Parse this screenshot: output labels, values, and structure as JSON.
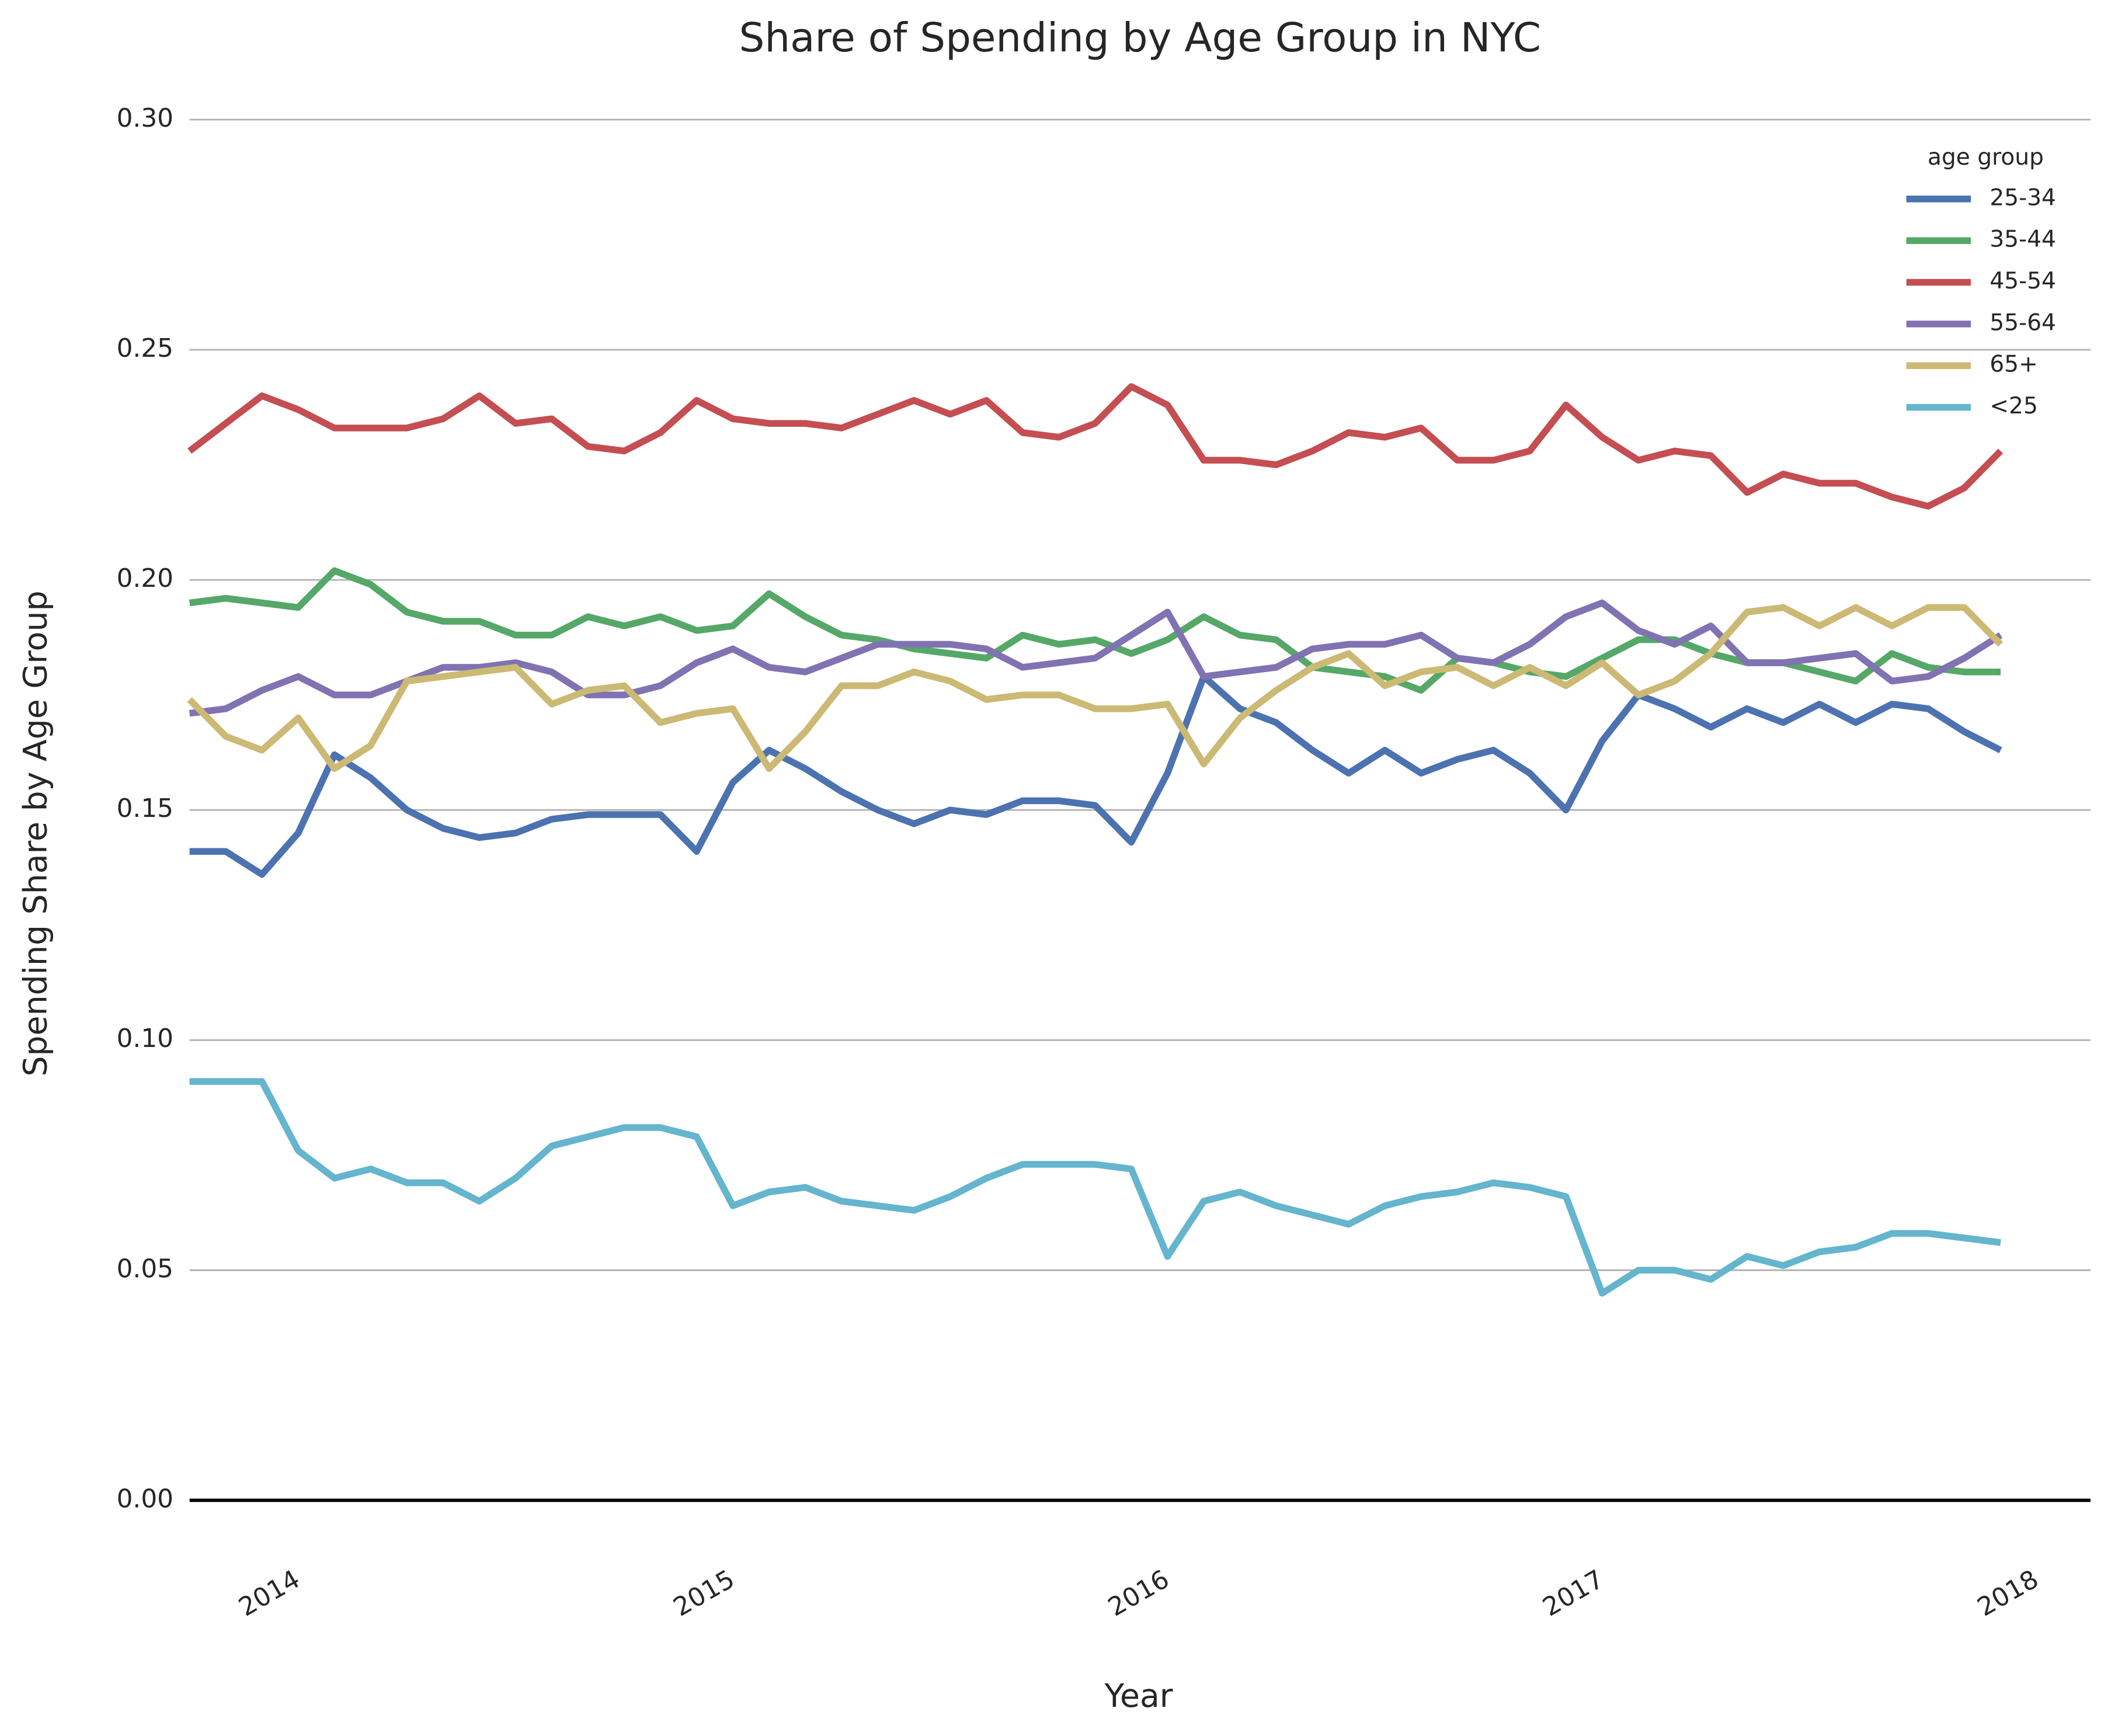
{
  "chart_data": {
    "type": "line",
    "title": "Share of Spending by Age Group in NYC",
    "x_label": "Year",
    "y_label": "Spending Share by Age Group",
    "legend_title": "age group",
    "legend": "upper right",
    "grid": true,
    "x": [
      "2013-10",
      "2013-11",
      "2013-12",
      "2014-01",
      "2014-02",
      "2014-03",
      "2014-04",
      "2014-05",
      "2014-06",
      "2014-07",
      "2014-08",
      "2014-09",
      "2014-10",
      "2014-11",
      "2014-12",
      "2015-01",
      "2015-02",
      "2015-03",
      "2015-04",
      "2015-05",
      "2015-06",
      "2015-07",
      "2015-08",
      "2015-09",
      "2015-10",
      "2015-11",
      "2015-12",
      "2016-01",
      "2016-02",
      "2016-03",
      "2016-04",
      "2016-05",
      "2016-06",
      "2016-07",
      "2016-08",
      "2016-09",
      "2016-10",
      "2016-11",
      "2016-12",
      "2017-01",
      "2017-02",
      "2017-03",
      "2017-04",
      "2017-05",
      "2017-06",
      "2017-07",
      "2017-08",
      "2017-09",
      "2017-10",
      "2017-11",
      "2017-12"
    ],
    "xlim": [
      "2013-10",
      "2018-02"
    ],
    "xticks": [
      {
        "value": "2014-01",
        "label": "2014"
      },
      {
        "value": "2015-01",
        "label": "2015"
      },
      {
        "value": "2016-01",
        "label": "2016"
      },
      {
        "value": "2017-01",
        "label": "2017"
      },
      {
        "value": "2018-01",
        "label": "2018"
      }
    ],
    "ylim": [
      0,
      0.3
    ],
    "yticks": [
      {
        "value": 0,
        "label": "0.00"
      },
      0.05,
      {
        "value": 0.1,
        "label": "0.10"
      },
      0.15,
      {
        "value": 0.2,
        "label": "0.20"
      },
      0.25,
      {
        "value": 0.3,
        "label": "0.30"
      }
    ],
    "series": [
      {
        "name": "25-34",
        "color": "#4c72b0",
        "values": [
          0.141,
          0.141,
          0.136,
          0.145,
          0.162,
          0.157,
          0.15,
          0.146,
          0.144,
          0.145,
          0.148,
          0.149,
          0.149,
          0.149,
          0.141,
          0.156,
          0.163,
          0.159,
          0.154,
          0.15,
          0.147,
          0.15,
          0.149,
          0.152,
          0.152,
          0.151,
          0.143,
          0.158,
          0.179,
          0.172,
          0.169,
          0.163,
          0.158,
          0.163,
          0.158,
          0.161,
          0.163,
          0.158,
          0.15,
          0.165,
          0.175,
          0.172,
          0.168,
          0.172,
          0.169,
          0.173,
          0.169,
          0.173,
          0.172,
          0.167,
          0.163
        ]
      },
      {
        "name": "35-44",
        "color": "#55a868",
        "values": [
          0.195,
          0.196,
          0.195,
          0.194,
          0.202,
          0.199,
          0.193,
          0.191,
          0.191,
          0.188,
          0.188,
          0.192,
          0.19,
          0.192,
          0.189,
          0.19,
          0.197,
          0.192,
          0.188,
          0.187,
          0.185,
          0.184,
          0.183,
          0.188,
          0.186,
          0.187,
          0.184,
          0.187,
          0.192,
          0.188,
          0.187,
          0.181,
          0.18,
          0.179,
          0.176,
          0.183,
          0.182,
          0.18,
          0.179,
          0.183,
          0.187,
          0.187,
          0.184,
          0.182,
          0.182,
          0.18,
          0.178,
          0.184,
          0.181,
          0.18,
          0.18
        ]
      },
      {
        "name": "45-54",
        "color": "#c44e52",
        "values": [
          0.228,
          0.234,
          0.24,
          0.237,
          0.233,
          0.233,
          0.233,
          0.235,
          0.24,
          0.234,
          0.235,
          0.229,
          0.228,
          0.232,
          0.239,
          0.235,
          0.234,
          0.234,
          0.233,
          0.236,
          0.239,
          0.236,
          0.239,
          0.232,
          0.231,
          0.234,
          0.242,
          0.238,
          0.226,
          0.226,
          0.225,
          0.228,
          0.232,
          0.231,
          0.233,
          0.226,
          0.226,
          0.228,
          0.238,
          0.231,
          0.226,
          0.228,
          0.227,
          0.219,
          0.223,
          0.221,
          0.221,
          0.218,
          0.216,
          0.22,
          0.228
        ]
      },
      {
        "name": "55-64",
        "color": "#8172b2",
        "values": [
          0.171,
          0.172,
          0.176,
          0.179,
          0.175,
          0.175,
          0.178,
          0.181,
          0.181,
          0.182,
          0.18,
          0.175,
          0.175,
          0.177,
          0.182,
          0.185,
          0.181,
          0.18,
          0.183,
          0.186,
          0.186,
          0.186,
          0.185,
          0.181,
          0.182,
          0.183,
          0.188,
          0.193,
          0.179,
          0.18,
          0.181,
          0.185,
          0.186,
          0.186,
          0.188,
          0.183,
          0.182,
          0.186,
          0.192,
          0.195,
          0.189,
          0.186,
          0.19,
          0.182,
          0.182,
          0.183,
          0.184,
          0.178,
          0.179,
          0.183,
          0.188
        ]
      },
      {
        "name": "65+",
        "color": "#ccb974",
        "values": [
          0.174,
          0.166,
          0.163,
          0.17,
          0.159,
          0.164,
          0.178,
          0.179,
          0.18,
          0.181,
          0.173,
          0.176,
          0.177,
          0.169,
          0.171,
          0.172,
          0.159,
          0.167,
          0.177,
          0.177,
          0.18,
          0.178,
          0.174,
          0.175,
          0.175,
          0.172,
          0.172,
          0.173,
          0.16,
          0.17,
          0.176,
          0.181,
          0.184,
          0.177,
          0.18,
          0.181,
          0.177,
          0.181,
          0.177,
          0.182,
          0.175,
          0.178,
          0.184,
          0.193,
          0.194,
          0.19,
          0.194,
          0.19,
          0.194,
          0.194,
          0.186
        ]
      },
      {
        "name": "<25",
        "color": "#64b5cd",
        "values": [
          0.091,
          0.091,
          0.091,
          0.076,
          0.07,
          0.072,
          0.069,
          0.069,
          0.065,
          0.07,
          0.077,
          0.079,
          0.081,
          0.081,
          0.079,
          0.064,
          0.067,
          0.068,
          0.065,
          0.064,
          0.063,
          0.066,
          0.07,
          0.073,
          0.073,
          0.073,
          0.072,
          0.053,
          0.065,
          0.067,
          0.064,
          0.062,
          0.06,
          0.064,
          0.066,
          0.067,
          0.069,
          0.068,
          0.066,
          0.045,
          0.05,
          0.05,
          0.048,
          0.053,
          0.051,
          0.054,
          0.055,
          0.058,
          0.058,
          0.057,
          0.056
        ]
      }
    ]
  }
}
